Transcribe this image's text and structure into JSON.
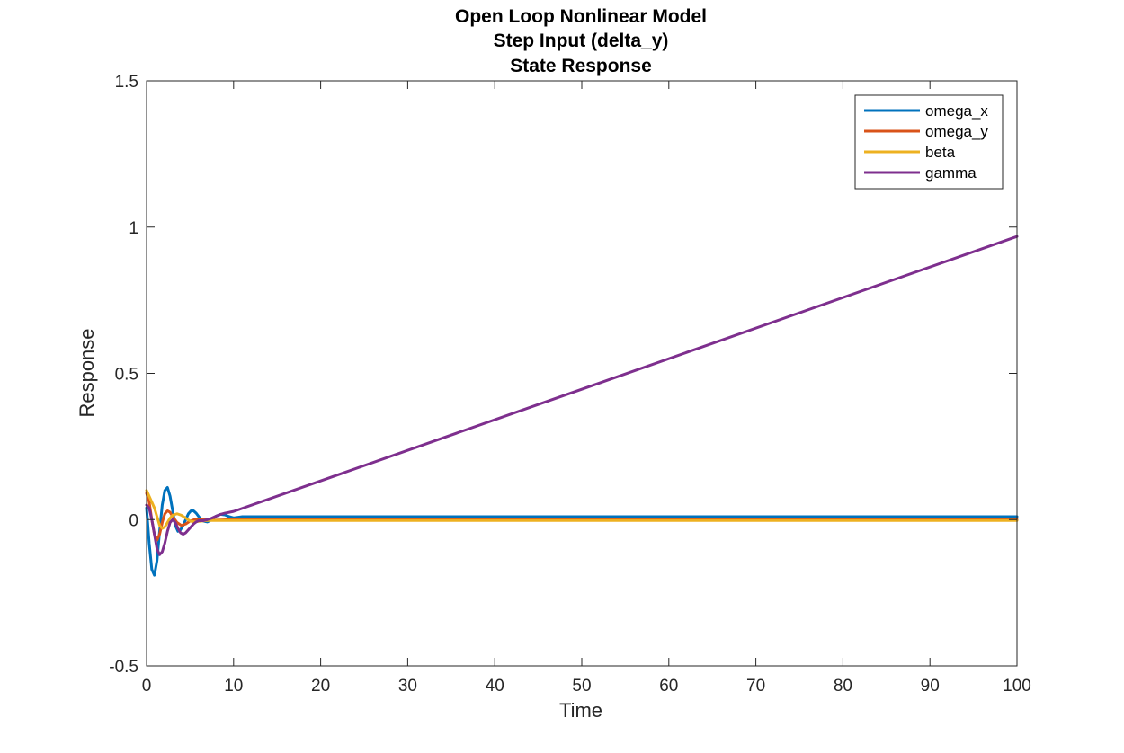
{
  "chart_data": {
    "type": "line",
    "title_lines": [
      "Open Loop Nonlinear Model",
      "Step Input (delta_y)",
      "State Response"
    ],
    "xlabel": "Time",
    "ylabel": "Response",
    "xlim": [
      0,
      100
    ],
    "ylim": [
      -0.5,
      1.5
    ],
    "xticks": [
      0,
      10,
      20,
      30,
      40,
      50,
      60,
      70,
      80,
      90,
      100
    ],
    "xtick_labels": [
      "0",
      "10",
      "20",
      "30",
      "40",
      "50",
      "60",
      "70",
      "80",
      "90",
      "100"
    ],
    "yticks": [
      -0.5,
      0,
      0.5,
      1,
      1.5
    ],
    "ytick_labels": [
      "-0.5",
      "0",
      "0.5",
      "1",
      "1.5"
    ],
    "grid": false,
    "legend_position": "top-right",
    "series": [
      {
        "name": "omega_x",
        "color": "#0072BD",
        "x": [
          0,
          0.3,
          0.6,
          0.9,
          1.2,
          1.5,
          1.8,
          2.1,
          2.4,
          2.7,
          3.0,
          3.3,
          3.6,
          3.9,
          4.2,
          4.5,
          4.8,
          5.1,
          5.4,
          5.7,
          6.0,
          6.5,
          7.0,
          7.5,
          8.0,
          8.5,
          9.0,
          9.5,
          10,
          11,
          12,
          13,
          15,
          20,
          100
        ],
        "y": [
          0.04,
          -0.08,
          -0.17,
          -0.19,
          -0.14,
          -0.04,
          0.05,
          0.1,
          0.11,
          0.08,
          0.03,
          -0.02,
          -0.04,
          -0.035,
          -0.02,
          0.0,
          0.02,
          0.03,
          0.03,
          0.022,
          0.01,
          -0.005,
          -0.008,
          0.0,
          0.012,
          0.018,
          0.016,
          0.01,
          0.006,
          0.01,
          0.01,
          0.01,
          0.01,
          0.01,
          0.01
        ]
      },
      {
        "name": "omega_y",
        "color": "#D95319",
        "x": [
          0,
          0.3,
          0.6,
          0.9,
          1.2,
          1.5,
          1.8,
          2.1,
          2.4,
          2.7,
          3.0,
          3.5,
          4.0,
          4.5,
          5.0,
          5.5,
          6.0,
          7.0,
          8.0,
          10,
          15,
          100
        ],
        "y": [
          0.09,
          0.06,
          0.0,
          -0.05,
          -0.07,
          -0.05,
          -0.01,
          0.02,
          0.03,
          0.025,
          0.01,
          -0.01,
          -0.02,
          -0.015,
          -0.005,
          0.0,
          0.002,
          0.0,
          -0.002,
          0.0,
          0.0,
          0.0
        ]
      },
      {
        "name": "beta",
        "color": "#EDB120",
        "x": [
          0,
          0.3,
          0.6,
          0.9,
          1.2,
          1.5,
          1.8,
          2.1,
          2.4,
          2.7,
          3.0,
          3.5,
          4.0,
          4.5,
          5.0,
          5.5,
          6.0,
          7.0,
          8.0,
          10,
          15,
          100
        ],
        "y": [
          0.1,
          0.08,
          0.06,
          0.04,
          0.01,
          -0.02,
          -0.03,
          -0.025,
          -0.01,
          0.005,
          0.015,
          0.02,
          0.015,
          0.005,
          -0.005,
          -0.008,
          -0.006,
          -0.003,
          -0.003,
          -0.003,
          -0.003,
          -0.003
        ]
      },
      {
        "name": "gamma",
        "color": "#7E2F8E",
        "x": [
          0,
          0.3,
          0.6,
          0.9,
          1.2,
          1.5,
          1.8,
          2.1,
          2.4,
          2.7,
          3.0,
          3.3,
          3.6,
          3.9,
          4.2,
          4.5,
          4.8,
          5.1,
          5.4,
          5.7,
          6.0,
          6.5,
          7.0,
          7.5,
          8.0,
          8.5,
          9.0,
          10,
          100
        ],
        "y": [
          0.05,
          0.04,
          0.0,
          -0.05,
          -0.1,
          -0.12,
          -0.11,
          -0.08,
          -0.04,
          -0.01,
          0.0,
          -0.01,
          -0.03,
          -0.045,
          -0.05,
          -0.045,
          -0.035,
          -0.025,
          -0.015,
          -0.008,
          -0.004,
          -0.004,
          0.0,
          0.005,
          0.012,
          0.018,
          0.022,
          0.028,
          0.968
        ]
      }
    ]
  }
}
